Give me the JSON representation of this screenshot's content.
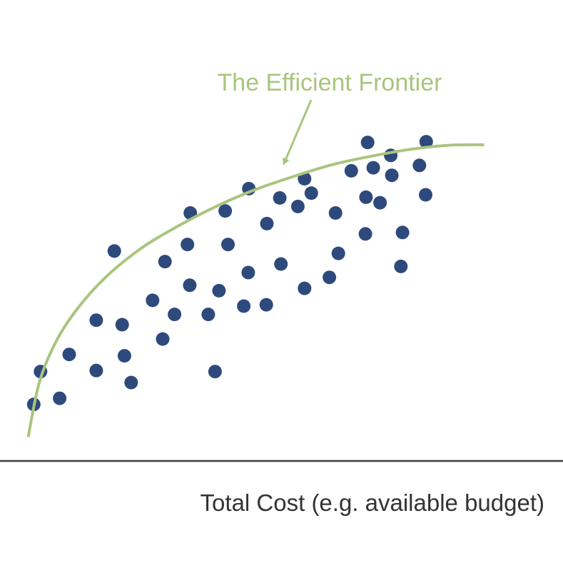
{
  "chart_data": {
    "type": "scatter",
    "title": "",
    "xlabel": "Total Cost (e.g. available budget)",
    "ylabel": "",
    "xlim": [
      0,
      100
    ],
    "ylim": [
      0,
      100
    ],
    "grid": false,
    "annotation": "The Efficient Frontier",
    "frontier": {
      "x": [
        5,
        7,
        10,
        14,
        19,
        25,
        31,
        38,
        45,
        52,
        59,
        66,
        73,
        80,
        86
      ],
      "y": [
        7,
        23,
        35,
        45,
        54,
        62,
        68,
        74,
        79,
        83,
        86.5,
        89,
        91,
        92.2,
        92.3
      ]
    },
    "points": [
      {
        "x": 6.0,
        "y": 16.5
      },
      {
        "x": 7.2,
        "y": 26.1
      },
      {
        "x": 10.6,
        "y": 18.3
      },
      {
        "x": 12.3,
        "y": 31.1
      },
      {
        "x": 17.1,
        "y": 26.4
      },
      {
        "x": 17.1,
        "y": 41.1
      },
      {
        "x": 20.3,
        "y": 61.3
      },
      {
        "x": 21.7,
        "y": 39.8
      },
      {
        "x": 22.1,
        "y": 30.7
      },
      {
        "x": 23.3,
        "y": 22.9
      },
      {
        "x": 27.1,
        "y": 46.9
      },
      {
        "x": 28.9,
        "y": 35.6
      },
      {
        "x": 29.3,
        "y": 58.2
      },
      {
        "x": 31.0,
        "y": 42.8
      },
      {
        "x": 33.3,
        "y": 63.2
      },
      {
        "x": 33.7,
        "y": 51.3
      },
      {
        "x": 33.8,
        "y": 72.4
      },
      {
        "x": 37.0,
        "y": 42.8
      },
      {
        "x": 38.2,
        "y": 26.1
      },
      {
        "x": 38.9,
        "y": 49.7
      },
      {
        "x": 40.0,
        "y": 73.0
      },
      {
        "x": 40.5,
        "y": 63.2
      },
      {
        "x": 43.3,
        "y": 45.2
      },
      {
        "x": 44.1,
        "y": 55.0
      },
      {
        "x": 44.2,
        "y": 79.5
      },
      {
        "x": 47.3,
        "y": 45.6
      },
      {
        "x": 47.4,
        "y": 69.3
      },
      {
        "x": 49.7,
        "y": 76.8
      },
      {
        "x": 49.9,
        "y": 57.5
      },
      {
        "x": 52.9,
        "y": 74.3
      },
      {
        "x": 54.1,
        "y": 50.4
      },
      {
        "x": 54.1,
        "y": 82.4
      },
      {
        "x": 55.3,
        "y": 78.2
      },
      {
        "x": 58.5,
        "y": 53.6
      },
      {
        "x": 59.6,
        "y": 72.4
      },
      {
        "x": 60.1,
        "y": 60.6
      },
      {
        "x": 62.4,
        "y": 84.7
      },
      {
        "x": 64.9,
        "y": 66.3
      },
      {
        "x": 65.0,
        "y": 77.0
      },
      {
        "x": 65.3,
        "y": 93.0
      },
      {
        "x": 66.3,
        "y": 85.6
      },
      {
        "x": 67.5,
        "y": 75.4
      },
      {
        "x": 69.4,
        "y": 89.2
      },
      {
        "x": 69.6,
        "y": 83.4
      },
      {
        "x": 71.2,
        "y": 56.8
      },
      {
        "x": 71.5,
        "y": 66.7
      },
      {
        "x": 74.5,
        "y": 86.3
      },
      {
        "x": 75.6,
        "y": 77.7
      },
      {
        "x": 75.7,
        "y": 93.2
      }
    ],
    "colors": {
      "points": "#2e4a7d",
      "frontier": "#a9c57e",
      "annotation": "#a9c57e",
      "axis": "#3d3d3d",
      "label": "#333333"
    }
  }
}
